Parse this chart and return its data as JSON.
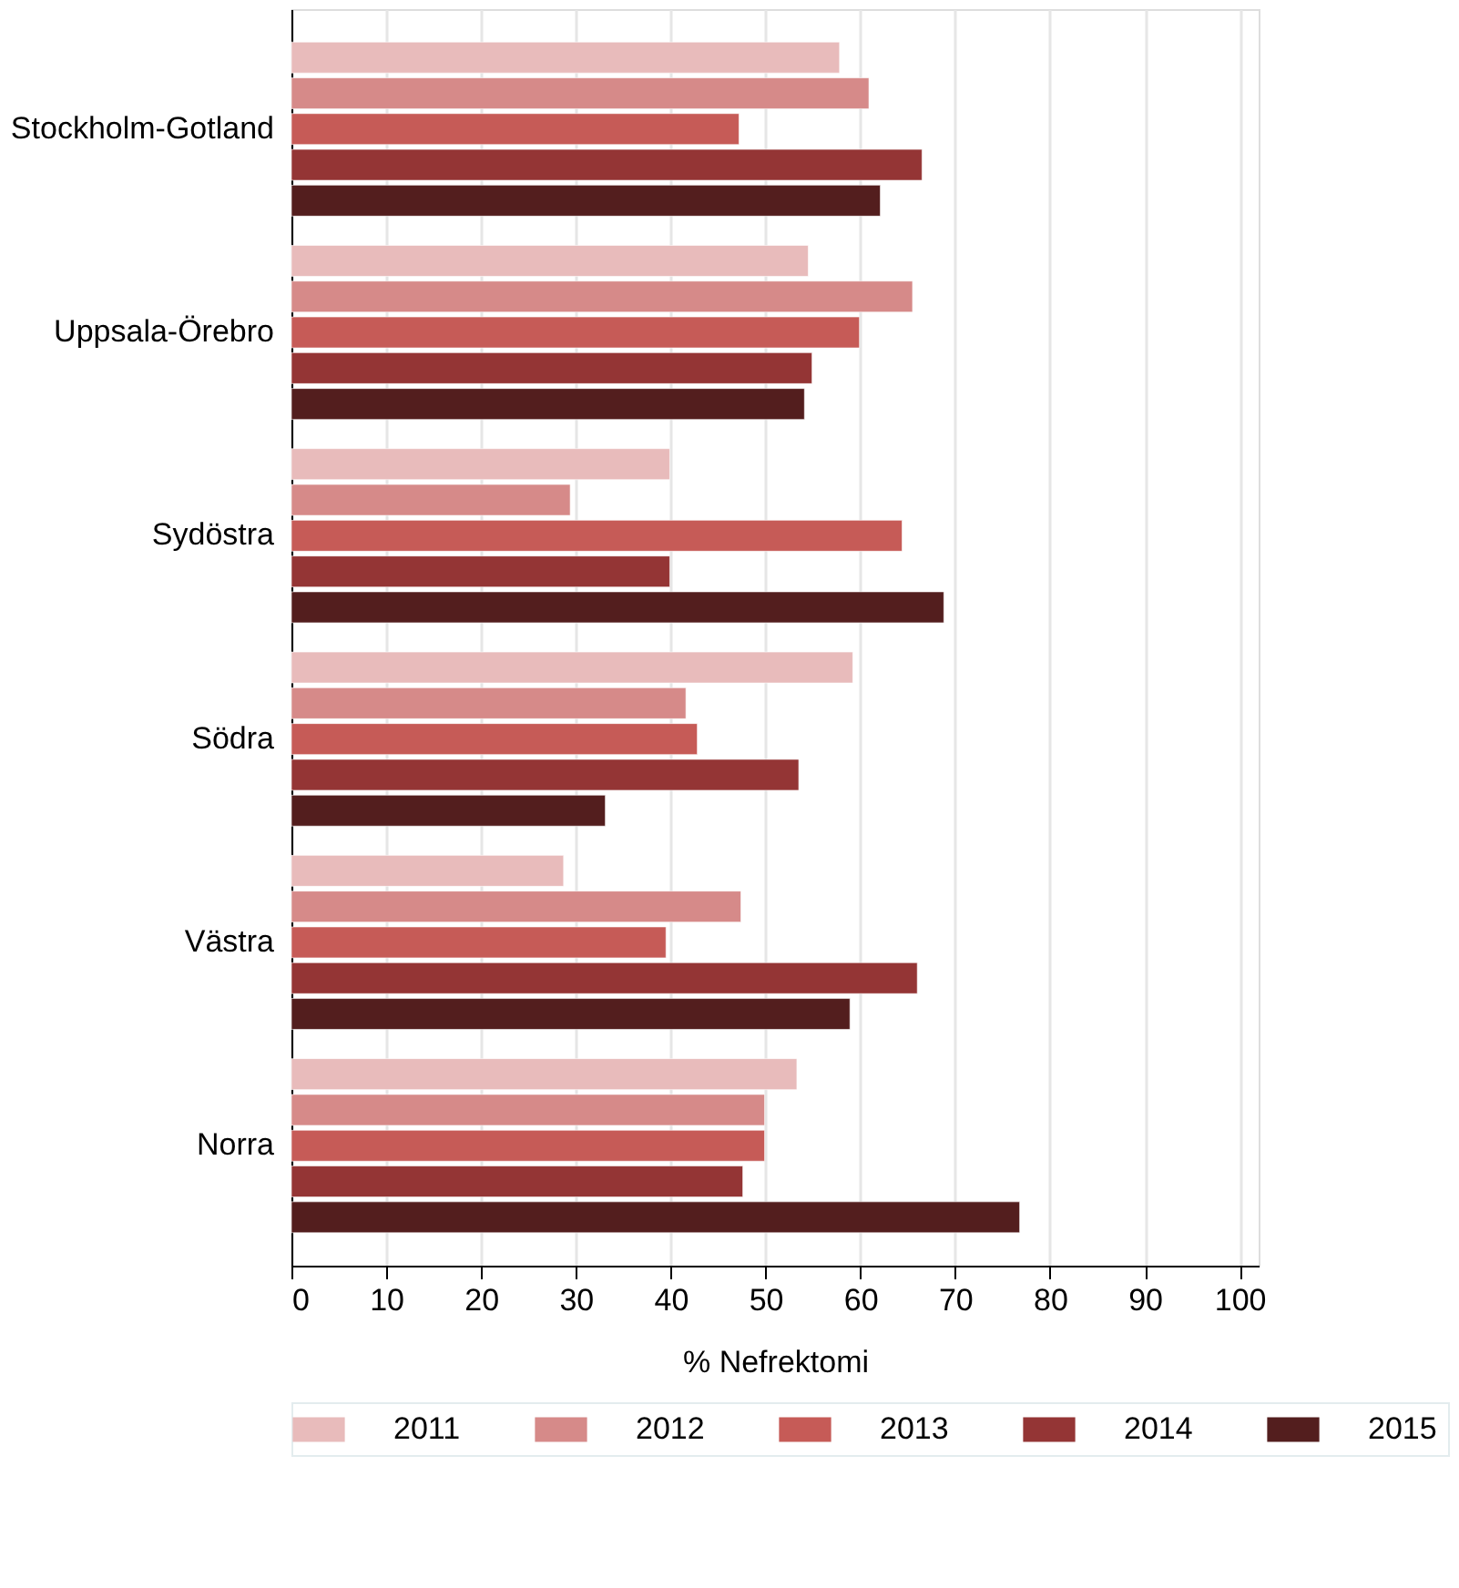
{
  "chart_data": {
    "type": "bar",
    "orientation": "horizontal",
    "xlabel": "% Nefrektomi",
    "categories": [
      "Stockholm-Gotland",
      "Uppsala-Örebro",
      "Sydöstra",
      "Södra",
      "Västra",
      "Norra"
    ],
    "series": [
      {
        "name": "2011",
        "color": "#e8bbbb",
        "values": [
          57.8,
          54.5,
          39.9,
          59.2,
          28.7,
          53.3
        ]
      },
      {
        "name": "2012",
        "color": "#d68a89",
        "values": [
          60.9,
          65.5,
          29.4,
          41.6,
          47.4,
          49.9
        ]
      },
      {
        "name": "2013",
        "color": "#c65b57",
        "values": [
          47.2,
          59.9,
          64.4,
          42.8,
          39.5,
          49.9
        ]
      },
      {
        "name": "2014",
        "color": "#943535",
        "values": [
          66.5,
          54.9,
          39.9,
          53.5,
          66.0,
          47.6
        ]
      },
      {
        "name": "2015",
        "color": "#531e1e",
        "values": [
          62.1,
          54.1,
          68.8,
          33.1,
          58.9,
          76.8
        ]
      }
    ],
    "xlim": [
      0,
      102
    ],
    "xticks": [
      0,
      10,
      20,
      30,
      40,
      50,
      60,
      70,
      80,
      90,
      100
    ],
    "grid": "x",
    "legend": "bottom"
  }
}
